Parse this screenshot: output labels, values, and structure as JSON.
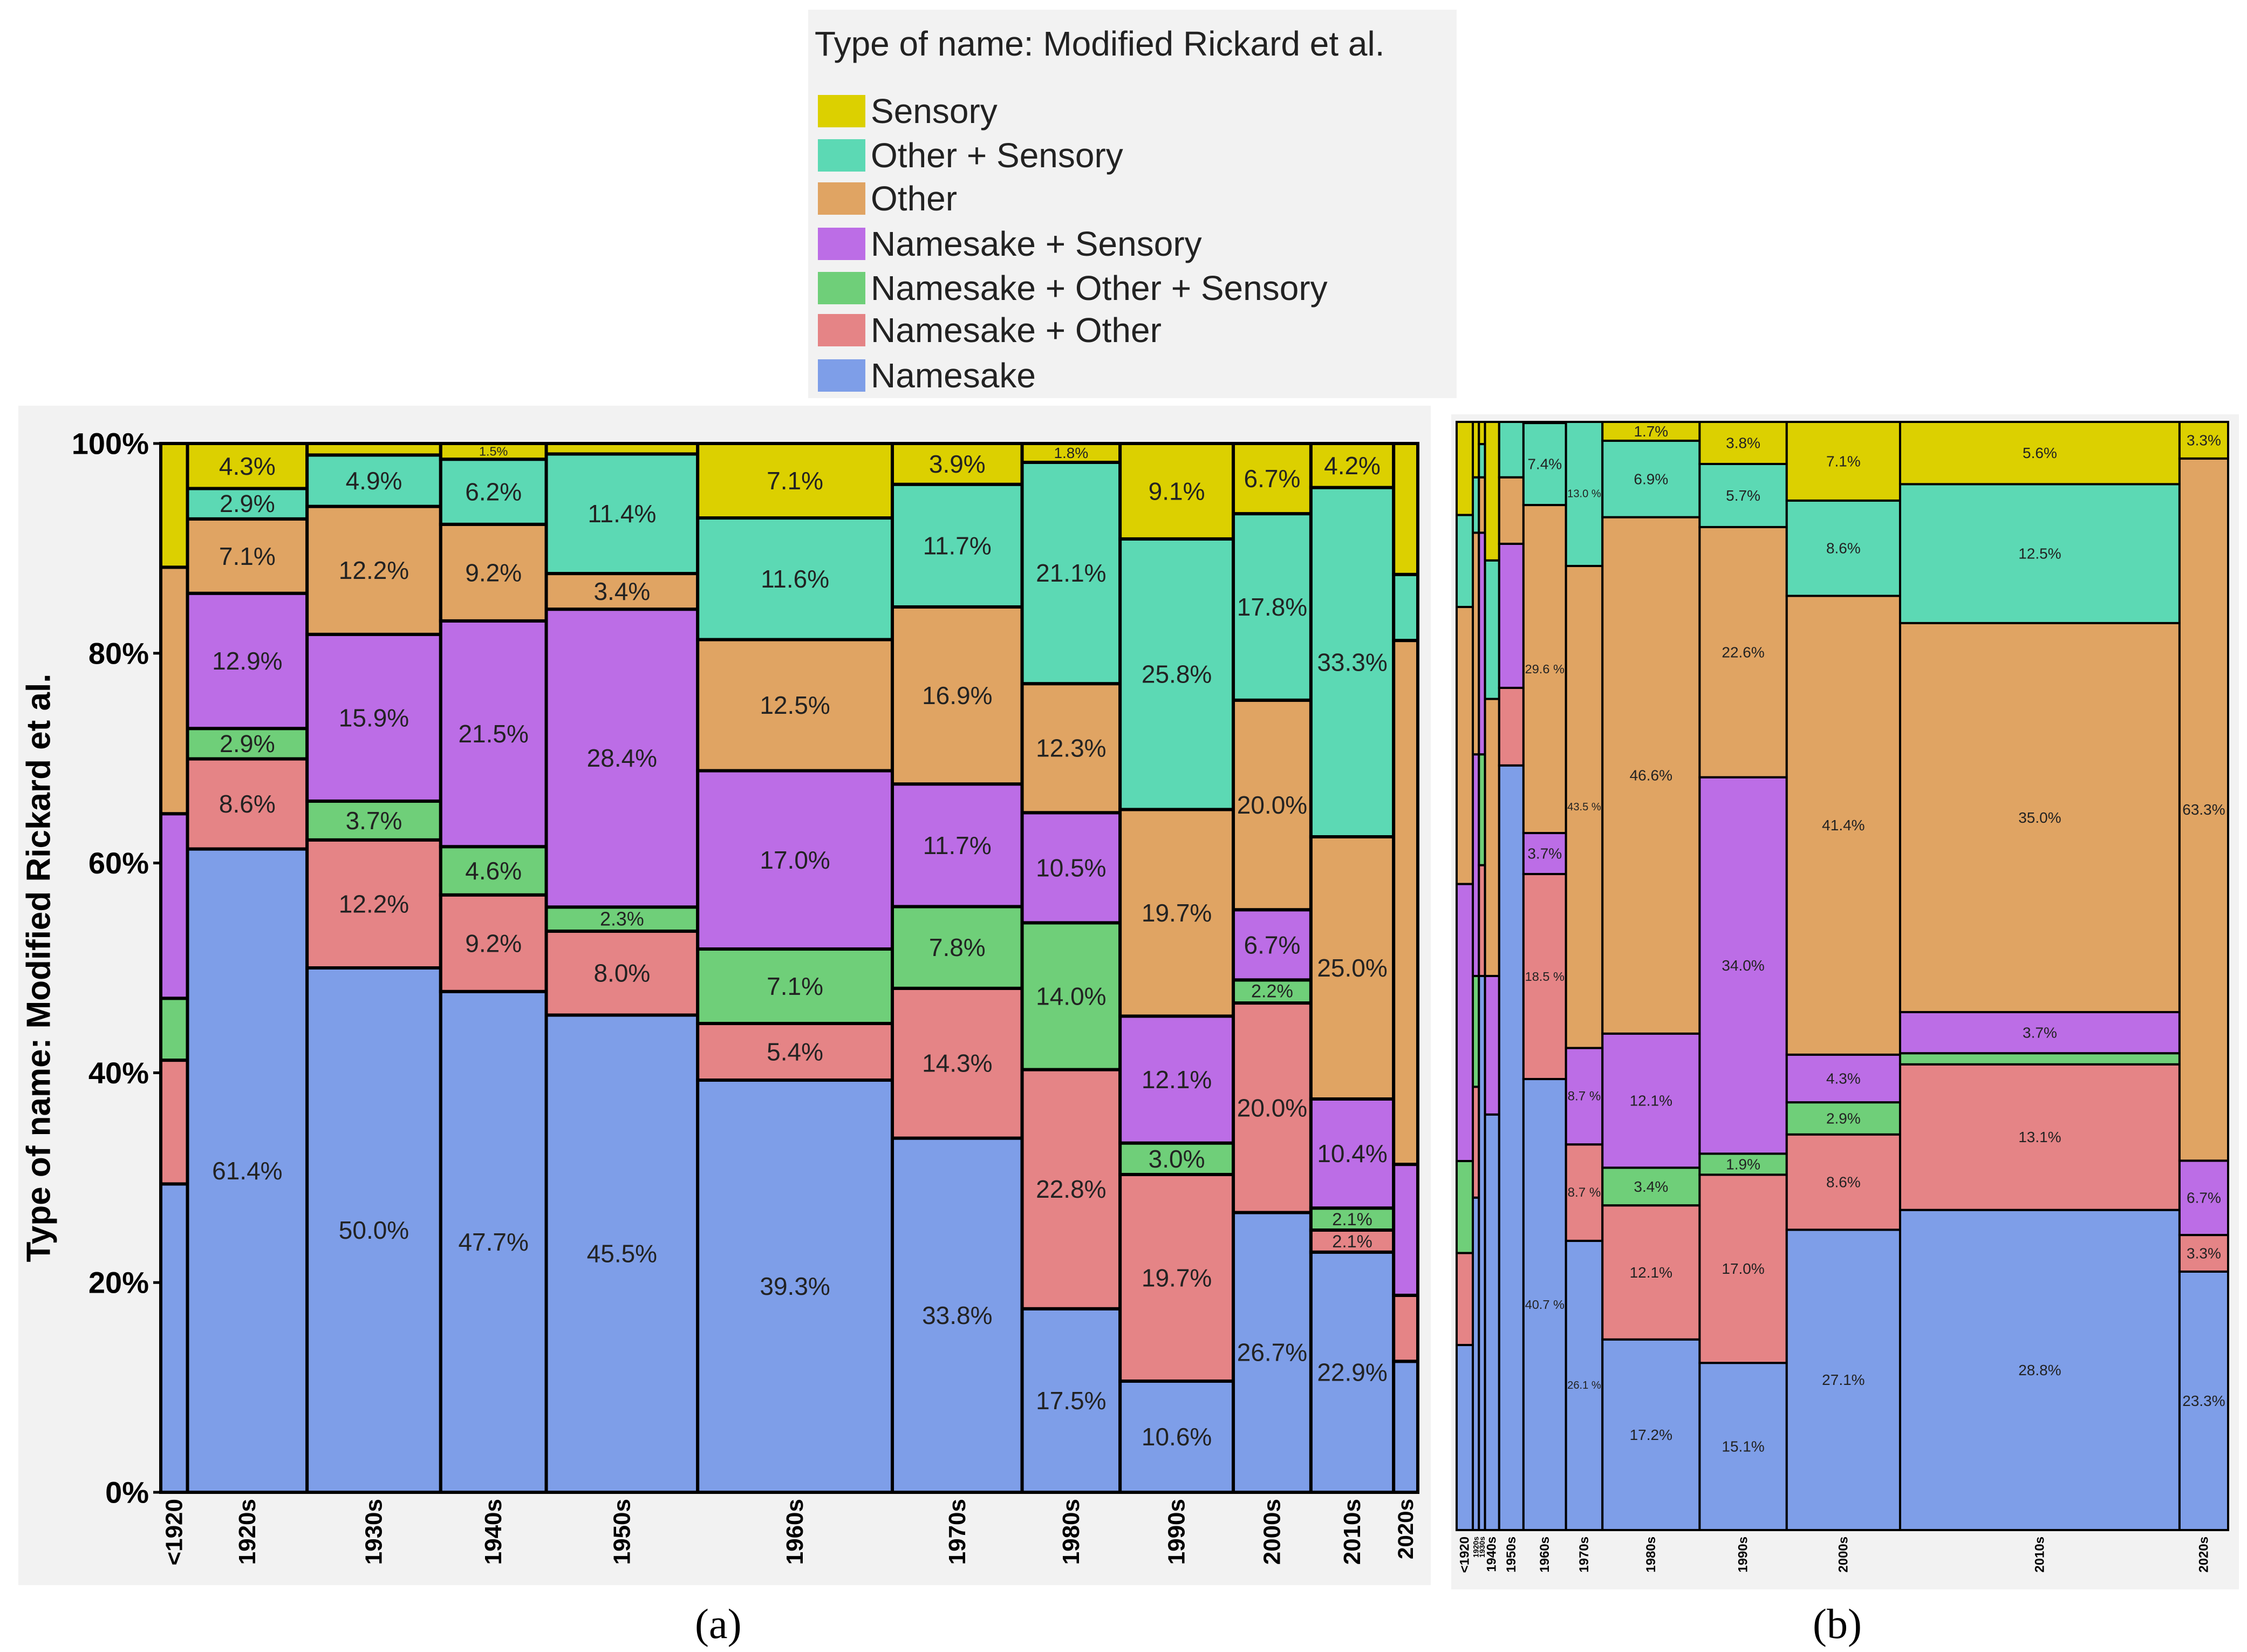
{
  "legend": {
    "title": "Type of name: Modified Rickard et al.",
    "items": [
      {
        "label": "Sensory",
        "color": "#dcd000"
      },
      {
        "label": "Other + Sensory",
        "color": "#5cd9b4"
      },
      {
        "label": "Other",
        "color": "#e0a463"
      },
      {
        "label": "Namesake + Sensory",
        "color": "#bc6de6"
      },
      {
        "label": "Namesake + Other + Sensory",
        "color": "#6fcf79"
      },
      {
        "label": "Namesake + Other",
        "color": "#e58486"
      },
      {
        "label": "Namesake",
        "color": "#7e9ee8"
      }
    ]
  },
  "captions": {
    "a": "(a)",
    "b": "(b)"
  },
  "chart_data": [
    {
      "panel": "a",
      "type": "bar",
      "subtype": "100% stacked (mosaic, bar width proportional to count)",
      "ylabel": "Type of name: Modified Rickard et al.",
      "ylim": [
        0,
        100
      ],
      "yticks": [
        "0%",
        "20%",
        "40%",
        "60%",
        "80%",
        "100%"
      ],
      "series_order": [
        "Namesake",
        "Namesake + Other",
        "Namesake + Other + Sensory",
        "Namesake + Sensory",
        "Other",
        "Other + Sensory",
        "Sensory"
      ],
      "categories": [
        {
          "name": "<1920",
          "weight": 2.1,
          "values": [
            29.4,
            11.8,
            5.9,
            17.6,
            23.5,
            0,
            11.8
          ],
          "labels": [
            "",
            "",
            "",
            "",
            "",
            "",
            ""
          ]
        },
        {
          "name": "1920s",
          "weight": 9.4,
          "values": [
            61.4,
            8.6,
            2.9,
            12.9,
            7.1,
            2.9,
            4.3
          ],
          "labels": [
            "61.4%",
            "8.6%",
            "2.9%",
            "12.9%",
            "7.1%",
            "2.9%",
            "4.3%"
          ]
        },
        {
          "name": "1930s",
          "weight": 10.5,
          "values": [
            50.0,
            12.2,
            3.7,
            15.9,
            12.2,
            4.9,
            1.1
          ],
          "labels": [
            "50.0%",
            "12.2%",
            "3.7%",
            "15.9%",
            "12.2%",
            "4.9%",
            ""
          ]
        },
        {
          "name": "1940s",
          "weight": 8.3,
          "values": [
            47.7,
            9.2,
            4.6,
            21.5,
            9.2,
            6.2,
            1.5
          ],
          "labels": [
            "47.7%",
            "9.2%",
            "4.6%",
            "21.5%",
            "9.2%",
            "6.2%",
            "1.5%"
          ]
        },
        {
          "name": "1950s",
          "weight": 11.9,
          "values": [
            45.5,
            8.0,
            2.3,
            28.4,
            3.4,
            11.4,
            1.0
          ],
          "labels": [
            "45.5%",
            "8.0%",
            "2.3%",
            "28.4%",
            "3.4%",
            "11.4%",
            ""
          ]
        },
        {
          "name": "1960s",
          "weight": 15.3,
          "values": [
            39.3,
            5.4,
            7.1,
            17.0,
            12.5,
            11.6,
            7.1
          ],
          "labels": [
            "39.3%",
            "5.4%",
            "7.1%",
            "17.0%",
            "12.5%",
            "11.6%",
            "7.1%"
          ]
        },
        {
          "name": "1970s",
          "weight": 10.2,
          "values": [
            33.8,
            14.3,
            7.8,
            11.7,
            16.9,
            11.7,
            3.9
          ],
          "labels": [
            "33.8%",
            "14.3%",
            "7.8%",
            "11.7%",
            "16.9%",
            "11.7%",
            "3.9%"
          ]
        },
        {
          "name": "1980s",
          "weight": 7.7,
          "values": [
            17.5,
            22.8,
            14.0,
            10.5,
            12.3,
            21.1,
            1.8
          ],
          "labels": [
            "17.5%",
            "22.8%",
            "14.0%",
            "10.5%",
            "12.3%",
            "21.1%",
            "1.8%"
          ]
        },
        {
          "name": "1990s",
          "weight": 8.9,
          "values": [
            10.6,
            19.7,
            3.0,
            12.1,
            19.7,
            25.8,
            9.1
          ],
          "labels": [
            "10.6%",
            "19.7%",
            "3.0%",
            "12.1%",
            "19.7%",
            "25.8%",
            "9.1%"
          ]
        },
        {
          "name": "2000s",
          "weight": 6.1,
          "values": [
            26.7,
            20.0,
            2.2,
            6.7,
            20.0,
            17.8,
            6.7
          ],
          "labels": [
            "26.7%",
            "20.0%",
            "2.2%",
            "6.7%",
            "20.0%",
            "17.8%",
            "6.7%"
          ]
        },
        {
          "name": "2010s",
          "weight": 6.5,
          "values": [
            22.9,
            2.1,
            2.1,
            10.4,
            25.0,
            33.3,
            4.2
          ],
          "labels": [
            "22.9%",
            "2.1%",
            "2.1%",
            "10.4%",
            "25.0%",
            "33.3%",
            "4.2%"
          ]
        },
        {
          "name": "2020s",
          "weight": 1.9,
          "values": [
            12.5,
            6.3,
            0,
            12.5,
            50.0,
            6.3,
            12.5
          ],
          "labels": [
            "",
            "",
            "",
            "",
            "",
            "",
            ""
          ]
        }
      ]
    },
    {
      "panel": "b",
      "type": "bar",
      "subtype": "100% stacked (mosaic, bar width proportional to count)",
      "ylim": [
        0,
        100
      ],
      "series_order": [
        "Namesake",
        "Namesake + Other",
        "Namesake + Other + Sensory",
        "Namesake + Sensory",
        "Other",
        "Other + Sensory",
        "Sensory"
      ],
      "categories": [
        {
          "name": "<1920",
          "weight": 0.8,
          "values": [
            16.7,
            8.3,
            8.3,
            25.0,
            25.0,
            8.3,
            8.4
          ],
          "labels": [
            "",
            "",
            "",
            "",
            "",
            "",
            ""
          ]
        },
        {
          "name": "1920s",
          "weight": 0.3,
          "values": [
            30,
            10,
            10,
            20,
            20,
            5,
            5
          ],
          "labels": [
            "",
            "",
            "",
            "",
            "",
            "",
            ""
          ]
        },
        {
          "name": "1930s",
          "weight": 0.3,
          "values": [
            50,
            10,
            10,
            20,
            5,
            3,
            2
          ],
          "labels": [
            "",
            "",
            "",
            "",
            "",
            "",
            ""
          ]
        },
        {
          "name": "1940s",
          "weight": 0.7,
          "values": [
            37.5,
            0,
            0,
            12.5,
            25,
            12.5,
            12.5
          ],
          "labels": [
            "",
            "",
            "",
            "",
            "",
            "",
            ""
          ]
        },
        {
          "name": "1950s",
          "weight": 1.2,
          "values": [
            69.0,
            7.0,
            0,
            13.0,
            6.0,
            5.0,
            0
          ],
          "labels": [
            "",
            "",
            "",
            "",
            "",
            "",
            ""
          ]
        },
        {
          "name": "1960s",
          "weight": 2.1,
          "values": [
            40.7,
            18.5,
            0,
            3.7,
            29.6,
            7.4,
            0.1
          ],
          "labels": [
            "40.7 %",
            "18.5 %",
            "",
            "3.7%",
            "29.6 %",
            "7.4%",
            ""
          ]
        },
        {
          "name": "1970s",
          "weight": 1.8,
          "values": [
            26.1,
            8.7,
            0,
            8.7,
            43.5,
            13.0,
            0
          ],
          "labels": [
            "26.1 %",
            "8.7 %",
            "",
            "8.7 %",
            "43.5 %",
            "13.0 %",
            ""
          ]
        },
        {
          "name": "1980s",
          "weight": 4.8,
          "values": [
            17.2,
            12.1,
            3.4,
            12.1,
            46.6,
            6.9,
            1.7
          ],
          "labels": [
            "17.2%",
            "12.1%",
            "3.4%",
            "12.1%",
            "46.6%",
            "6.9%",
            "1.7%"
          ]
        },
        {
          "name": "1990s",
          "weight": 4.3,
          "values": [
            15.1,
            17.0,
            1.9,
            34.0,
            22.6,
            5.7,
            3.8
          ],
          "labels": [
            "15.1%",
            "17.0%",
            "1.9%",
            "34.0%",
            "22.6%",
            "5.7%",
            "3.8%"
          ]
        },
        {
          "name": "2000s",
          "weight": 5.6,
          "values": [
            27.1,
            8.6,
            2.9,
            4.3,
            41.4,
            8.6,
            7.1
          ],
          "labels": [
            "27.1%",
            "8.6%",
            "2.9%",
            "4.3%",
            "41.4%",
            "8.6%",
            "7.1%"
          ]
        },
        {
          "name": "2010s",
          "weight": 13.8,
          "values": [
            28.8,
            13.1,
            1.0,
            3.7,
            35.0,
            12.5,
            5.6
          ],
          "labels": [
            "28.8%",
            "13.1%",
            "",
            "3.7%",
            "35.0%",
            "12.5%",
            "5.6%"
          ]
        },
        {
          "name": "2020s",
          "weight": 2.4,
          "values": [
            23.3,
            3.3,
            0,
            6.7,
            63.3,
            0,
            3.3
          ],
          "labels": [
            "23.3%",
            "3.3%",
            "",
            "6.7%",
            "63.3%",
            "",
            "3.3%"
          ]
        }
      ]
    }
  ]
}
